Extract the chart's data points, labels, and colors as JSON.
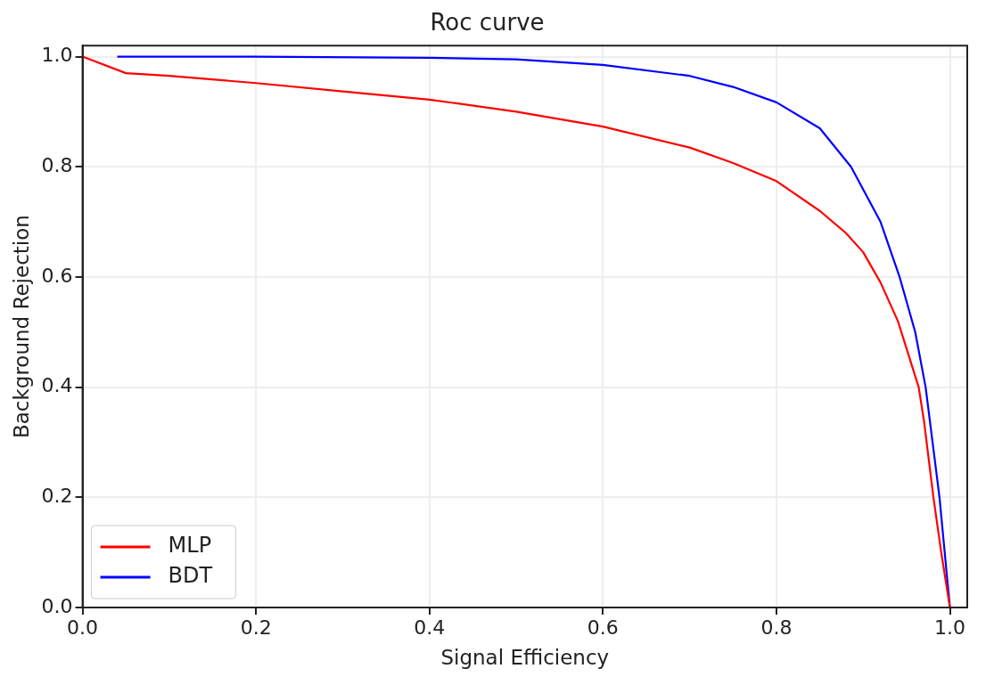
{
  "chart_data": {
    "type": "line",
    "title": "Roc curve",
    "xlabel": "Signal Efficiency",
    "ylabel": "Background Rejection",
    "xlim": [
      0,
      1.02
    ],
    "ylim": [
      0,
      1.02
    ],
    "xticks": [
      {
        "value": 0,
        "label": "0.0"
      },
      0.2,
      0.4,
      0.6,
      0.8,
      {
        "value": 1,
        "label": "1.0"
      }
    ],
    "yticks": [
      {
        "value": 0,
        "label": "0.0"
      },
      0.2,
      0.4,
      0.6,
      0.8,
      {
        "value": 1,
        "label": "1.0"
      }
    ],
    "grid": true,
    "legend": "bottom left",
    "marker": "none",
    "line_style": "solid",
    "series": [
      {
        "name": "MLP",
        "color": "#ff0000",
        "x": [
          0,
          0.05,
          0.1,
          0.2,
          0.3,
          0.4,
          0.5,
          0.6,
          0.7,
          0.75,
          0.8,
          0.85,
          0.88,
          0.9,
          0.92,
          0.94,
          0.964,
          0.97,
          0.981,
          0.99,
          1.0
        ],
        "values": [
          1.0,
          0.97,
          0.965,
          0.952,
          0.937,
          0.922,
          0.9,
          0.873,
          0.835,
          0.807,
          0.774,
          0.72,
          0.68,
          0.645,
          0.59,
          0.52,
          0.4,
          0.34,
          0.2,
          0.1,
          0.0
        ]
      },
      {
        "name": "BDT",
        "color": "#0000ff",
        "x": [
          0.04,
          0.2,
          0.4,
          0.5,
          0.6,
          0.7,
          0.75,
          0.8,
          0.85,
          0.886,
          0.92,
          0.942,
          0.96,
          0.972,
          0.988,
          1.0
        ],
        "values": [
          1.0,
          1.0,
          0.998,
          0.995,
          0.985,
          0.965,
          0.945,
          0.917,
          0.87,
          0.8,
          0.7,
          0.6,
          0.5,
          0.4,
          0.2,
          0.0
        ]
      }
    ]
  }
}
